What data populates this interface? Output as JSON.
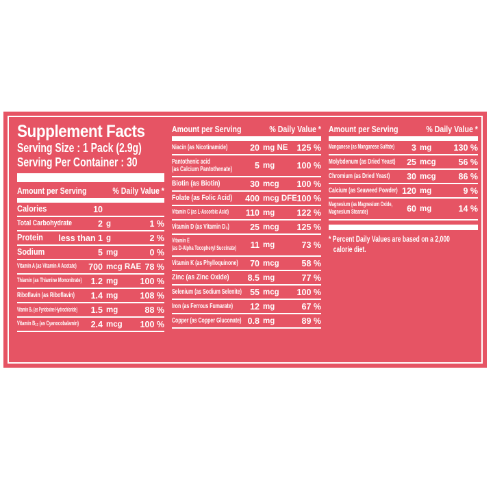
{
  "label_colors": {
    "background": "#e65464",
    "text": "#ffffff"
  },
  "title": "Supplement Facts",
  "serving": {
    "size": "Serving Size : 1 Pack (2.9g)",
    "per_container": "Serving Per Container : 30"
  },
  "table_header": {
    "amount": "Amount per Serving",
    "daily_value": "% Daily Value *"
  },
  "footnote": {
    "line1": "* Percent Daily Values are based on a 2,000",
    "line2": "calorie diet."
  },
  "columns": [
    {
      "rows": [
        {
          "label": "Calories",
          "num": "10",
          "unit": "",
          "dv": ""
        },
        {
          "label": "Total Carbohydrate",
          "num": "2",
          "unit": "g",
          "dv": "1 %"
        },
        {
          "label": "Protein",
          "num": "less than 1",
          "unit": "g",
          "dv": "2 %"
        },
        {
          "label": "Sodium",
          "num": "5",
          "unit": "mg",
          "dv": "0 %"
        },
        {
          "label": "Vitamin A (as Vitamin A Acetate)",
          "num": "700",
          "unit": "mcg RAE",
          "dv": "78 %"
        },
        {
          "label": "Thiamin (as Thiamine Mononitrate)",
          "num": "1.2",
          "unit": "mg",
          "dv": "100 %"
        },
        {
          "label": "Riboflavin (as Riboflavin)",
          "num": "1.4",
          "unit": "mg",
          "dv": "108 %"
        },
        {
          "label": "Vitamin B₆ (as Pyridoxine Hydrochloride)",
          "num": "1.5",
          "unit": "mg",
          "dv": "88 %"
        },
        {
          "label": "Vitamin B₁₂ (as Cyanocobalamin)",
          "num": "2.4",
          "unit": "mcg",
          "dv": "100 %"
        }
      ]
    },
    {
      "rows": [
        {
          "label": "Niacin (as Nicotinamide)",
          "num": "20",
          "unit": "mg NE",
          "dv": "125 %"
        },
        {
          "label": [
            "Pantothenic acid",
            "(as Calcium Pantothenate)"
          ],
          "num": "5",
          "unit": "mg",
          "dv": "100 %"
        },
        {
          "label": "Biotin (as Biotin)",
          "num": "30",
          "unit": "mcg",
          "dv": "100 %"
        },
        {
          "label": "Folate (as Folic Acid)",
          "num": "400",
          "unit": "mcg DFE",
          "dv": "100 %"
        },
        {
          "label": "Vitamin C (as L-Ascorbic Acid)",
          "num": "110",
          "unit": "mg",
          "dv": "122 %"
        },
        {
          "label": "Vitamin D (as Vitamin D₃)",
          "num": "25",
          "unit": "mcg",
          "dv": "125 %"
        },
        {
          "label": [
            "Vitamin E",
            "(as D-Alpha Tocopheryl Succinate)"
          ],
          "num": "11",
          "unit": "mg",
          "dv": "73 %"
        },
        {
          "label": "Vitamin K (as Phylloquinone)",
          "num": "70",
          "unit": "mcg",
          "dv": "58 %"
        },
        {
          "label": "Zinc (as Zinc Oxide)",
          "num": "8.5",
          "unit": "mg",
          "dv": "77 %"
        },
        {
          "label": "Selenium (as Sodium Selenite)",
          "num": "55",
          "unit": "mcg",
          "dv": "100 %"
        },
        {
          "label": "Iron (as Ferrous Fumarate)",
          "num": "12",
          "unit": "mg",
          "dv": "67 %"
        },
        {
          "label": "Copper (as Copper Gluconate)",
          "num": "0.8",
          "unit": "mg",
          "dv": "89 %"
        }
      ]
    },
    {
      "rows": [
        {
          "label": "Manganese (as Manganese Sulfate)",
          "num": "3",
          "unit": "mg",
          "dv": "130 %"
        },
        {
          "label": "Molybdenum (as Dried Yeast)",
          "num": "25",
          "unit": "mcg",
          "dv": "56 %"
        },
        {
          "label": "Chromium (as Dried Yeast)",
          "num": "30",
          "unit": "mcg",
          "dv": "86 %"
        },
        {
          "label": "Calcium (as Seaweed Powder)",
          "num": "120",
          "unit": "mg",
          "dv": "9 %"
        },
        {
          "label": [
            "Magnesium (as Magnesium Oxide,",
            "Magnesium Stearate)"
          ],
          "num": "60",
          "unit": "mg",
          "dv": "14 %"
        }
      ]
    }
  ]
}
